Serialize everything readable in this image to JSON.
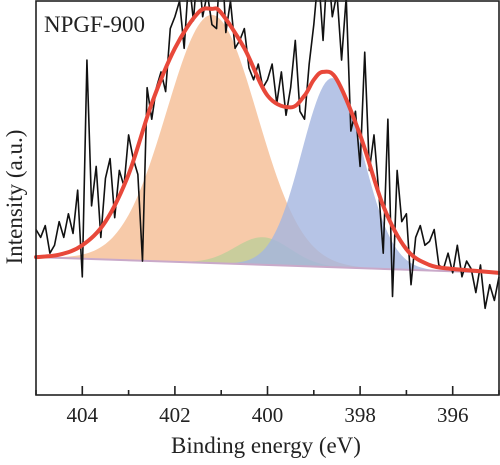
{
  "chart_data": {
    "type": "line",
    "title": "NPGF-900",
    "xlabel": "Binding energy (eV)",
    "ylabel": "Intensity (a.u.)",
    "x_reversed": true,
    "xlim": [
      405,
      395
    ],
    "ylim": [
      0,
      100
    ],
    "xticks": [
      404,
      402,
      400,
      398,
      396
    ],
    "grid": false,
    "legend": "none",
    "colors": {
      "raw": "#111111",
      "envelope": "#e8483a",
      "peak_401_2": "#f6c19a",
      "peak_400_1": "#b5cf97",
      "peak_398_6": "#a4b5e0",
      "background": "#c9a9c9",
      "axes": "#222222"
    },
    "baseline": {
      "x": [
        405,
        395
      ],
      "y": [
        35,
        31
      ]
    },
    "peaks": [
      {
        "center": 401.2,
        "height": 63,
        "fwhm": 2.3
      },
      {
        "center": 400.1,
        "height": 7,
        "fwhm": 1.4
      },
      {
        "center": 398.6,
        "height": 48,
        "fwhm": 1.55
      }
    ],
    "envelope": {
      "x": [
        405.0,
        404.5,
        404.0,
        403.5,
        403.0,
        402.5,
        402.0,
        401.5,
        401.2,
        401.0,
        400.5,
        400.0,
        399.5,
        399.2,
        399.0,
        398.8,
        398.5,
        398.0,
        397.5,
        397.0,
        396.5,
        396.0,
        395.5,
        395.0
      ],
      "y": [
        35.0,
        35.6,
        38.0,
        44.0,
        56.0,
        74.0,
        88.0,
        97.0,
        98.0,
        97.0,
        88.0,
        76.0,
        73.0,
        76.0,
        80.0,
        82.0,
        80.0,
        66.0,
        48.0,
        37.0,
        33.0,
        32.0,
        31.5,
        31.0
      ]
    },
    "raw": {
      "x": [
        405.0,
        404.9,
        404.8,
        404.7,
        404.6,
        404.5,
        404.4,
        404.3,
        404.2,
        404.1,
        404.0,
        403.9,
        403.8,
        403.7,
        403.6,
        403.5,
        403.4,
        403.3,
        403.2,
        403.1,
        403.0,
        402.9,
        402.8,
        402.7,
        402.6,
        402.5,
        402.4,
        402.3,
        402.2,
        402.1,
        402.0,
        401.9,
        401.8,
        401.7,
        401.6,
        401.5,
        401.4,
        401.3,
        401.2,
        401.1,
        401.0,
        400.9,
        400.8,
        400.7,
        400.6,
        400.5,
        400.4,
        400.3,
        400.2,
        400.1,
        400.0,
        399.9,
        399.8,
        399.7,
        399.6,
        399.5,
        399.4,
        399.3,
        399.2,
        399.1,
        399.0,
        398.9,
        398.8,
        398.7,
        398.6,
        398.5,
        398.4,
        398.3,
        398.2,
        398.1,
        398.0,
        397.9,
        397.8,
        397.7,
        397.6,
        397.5,
        397.4,
        397.3,
        397.2,
        397.1,
        397.0,
        396.9,
        396.8,
        396.7,
        396.6,
        396.5,
        396.4,
        396.3,
        396.2,
        396.1,
        396.0,
        395.9,
        395.8,
        395.7,
        395.6,
        395.5,
        395.4,
        395.3,
        395.2,
        395.1,
        395.0
      ],
      "y": [
        42,
        40,
        43,
        36,
        38,
        44,
        40,
        46,
        41,
        52,
        30,
        85,
        48,
        58,
        40,
        55,
        60,
        45,
        57,
        53,
        66,
        60,
        56,
        34,
        78,
        70,
        78,
        82,
        77,
        93,
        96,
        100,
        88,
        106,
        95,
        110,
        96,
        102,
        94,
        93,
        115,
        92,
        100,
        88,
        90,
        93,
        83,
        80,
        84,
        78,
        80,
        84,
        74,
        82,
        71,
        78,
        90,
        72,
        70,
        84,
        94,
        107,
        90,
        110,
        96,
        102,
        85,
        101,
        67,
        72,
        58,
        87,
        57,
        66,
        52,
        36,
        70,
        25,
        57,
        44,
        46,
        28,
        40,
        43,
        38,
        39,
        42,
        33,
        32,
        36,
        31,
        38,
        30,
        34,
        32,
        26,
        33,
        22,
        28,
        24,
        30
      ]
    }
  }
}
